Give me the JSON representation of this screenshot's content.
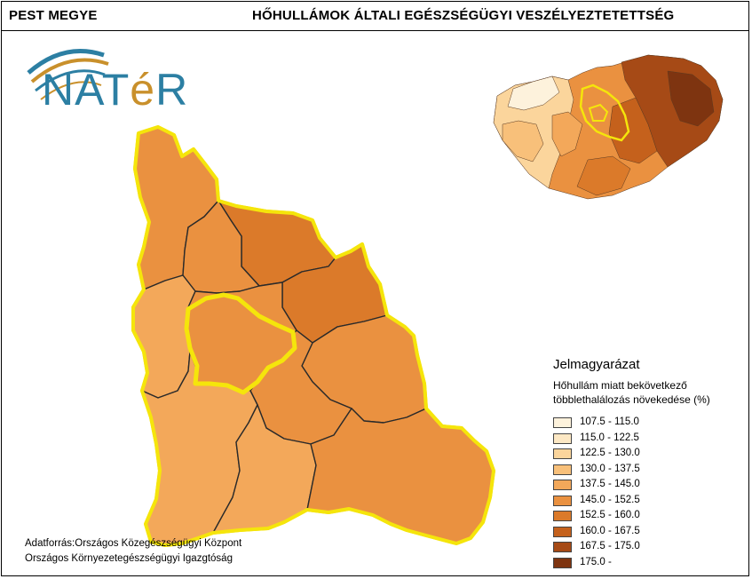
{
  "header": {
    "county": "PEST MEGYE",
    "title": "HŐHULLÁMOK ÁLTALI EGÉSZSÉGÜGYI VESZÉLYEZTETETTSÉG"
  },
  "logo": {
    "text_main": "NAT",
    "text_accent": "é",
    "text_end": "R"
  },
  "legend": {
    "title": "Jelmagyarázat",
    "subtitle_line1": "Hőhullám miatt bekövetkező",
    "subtitle_line2": "többlethalálozás növekedése (%)",
    "classes": [
      {
        "label": "107.5 - 115.0",
        "color": "#fdf2dc"
      },
      {
        "label": "115.0 - 122.5",
        "color": "#fde8c4"
      },
      {
        "label": "122.5 - 130.0",
        "color": "#fbd59c"
      },
      {
        "label": "130.0 - 137.5",
        "color": "#f8c07a"
      },
      {
        "label": "137.5 - 145.0",
        "color": "#f3a85a"
      },
      {
        "label": "145.0 - 152.5",
        "color": "#ea9140"
      },
      {
        "label": "152.5 - 160.0",
        "color": "#db7a2a"
      },
      {
        "label": "160.0 - 167.5",
        "color": "#c5611c"
      },
      {
        "label": "167.5 - 175.0",
        "color": "#a64a16"
      },
      {
        "label": "175.0 -",
        "color": "#7e3410"
      }
    ]
  },
  "source": {
    "line1": "Adatforrás:Országos Közegészségügyi Központ",
    "line2": "Országos Környezetegészségügyi Igazgtóság"
  }
}
